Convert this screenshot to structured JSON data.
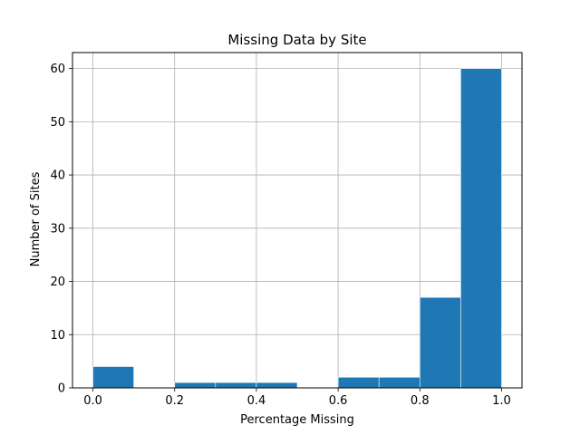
{
  "chart_data": {
    "type": "bar",
    "title": "Missing Data by Site",
    "xlabel": "Percentage Missing",
    "ylabel": "Number of Sites",
    "xlim": [
      -0.05,
      1.05
    ],
    "ylim": [
      0,
      63
    ],
    "grid": true,
    "bar_color": "#1f77b4",
    "x_ticks": [
      0.0,
      0.2,
      0.4,
      0.6,
      0.8,
      1.0
    ],
    "x_tick_labels": [
      "0.0",
      "0.2",
      "0.4",
      "0.6",
      "0.8",
      "1.0"
    ],
    "y_ticks": [
      0,
      10,
      20,
      30,
      40,
      50,
      60
    ],
    "y_tick_labels": [
      "0",
      "10",
      "20",
      "30",
      "40",
      "50",
      "60"
    ],
    "bins": [
      {
        "x0": 0.0,
        "x1": 0.1,
        "count": 4
      },
      {
        "x0": 0.1,
        "x1": 0.2,
        "count": 0
      },
      {
        "x0": 0.2,
        "x1": 0.3,
        "count": 1
      },
      {
        "x0": 0.3,
        "x1": 0.4,
        "count": 1
      },
      {
        "x0": 0.4,
        "x1": 0.5,
        "count": 1
      },
      {
        "x0": 0.5,
        "x1": 0.6,
        "count": 0
      },
      {
        "x0": 0.6,
        "x1": 0.7,
        "count": 2
      },
      {
        "x0": 0.7,
        "x1": 0.8,
        "count": 2
      },
      {
        "x0": 0.8,
        "x1": 0.9,
        "count": 17
      },
      {
        "x0": 0.9,
        "x1": 1.0,
        "count": 60
      }
    ]
  }
}
